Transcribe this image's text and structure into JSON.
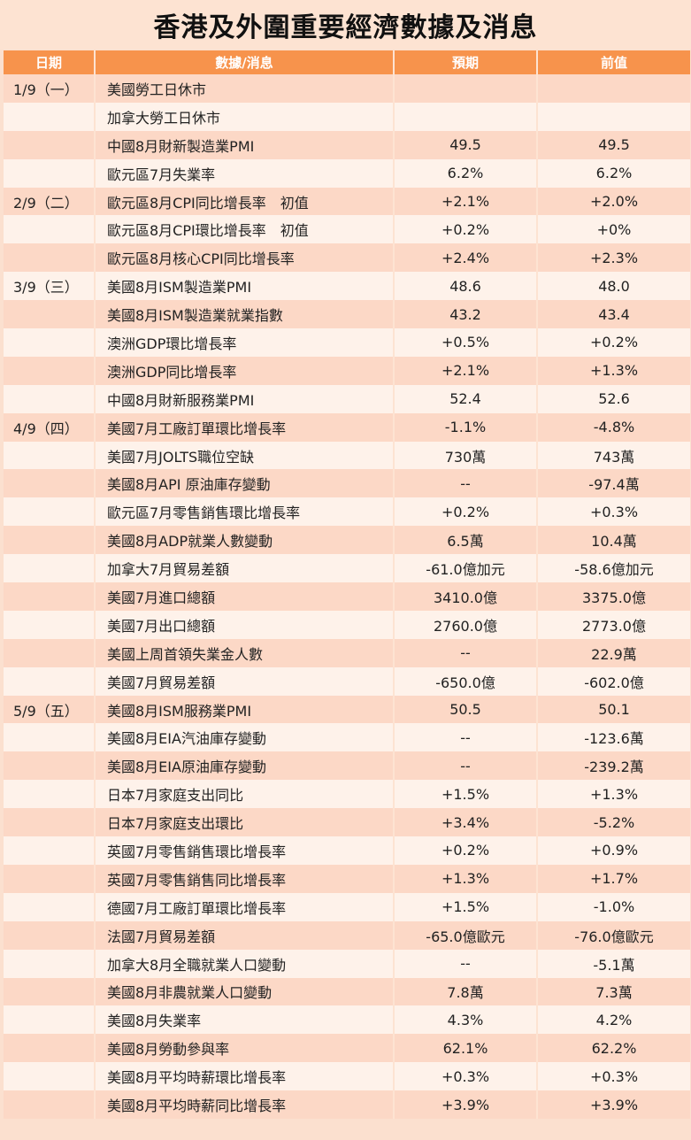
{
  "title": "香港及外圍重要經濟數據及消息",
  "colors": {
    "header_bg": "#f7934c",
    "row_dark": "#fcd8c6",
    "row_light": "#fef2ea"
  },
  "headers": {
    "date": "日期",
    "item": "數據/消息",
    "forecast": "預期",
    "previous": "前值"
  },
  "rows": [
    {
      "date": "1/9（一）",
      "item": "美國勞工日休市",
      "forecast": "",
      "previous": ""
    },
    {
      "date": "",
      "item": "加拿大勞工日休市",
      "forecast": "",
      "previous": ""
    },
    {
      "date": "",
      "item": "中國8月財新製造業PMI",
      "forecast": "49.5",
      "previous": "49.5"
    },
    {
      "date": "",
      "item": "歐元區7月失業率",
      "forecast": "6.2%",
      "previous": "6.2%"
    },
    {
      "date": "2/9（二）",
      "item": "歐元區8月CPI同比增長率　初值",
      "forecast": "+2.1%",
      "previous": "+2.0%"
    },
    {
      "date": "",
      "item": "歐元區8月CPI環比增長率　初值",
      "forecast": "+0.2%",
      "previous": "+0%"
    },
    {
      "date": "",
      "item": "歐元區8月核心CPI同比增長率",
      "forecast": "+2.4%",
      "previous": "+2.3%"
    },
    {
      "date": "3/9（三）",
      "item": "美國8月ISM製造業PMI",
      "forecast": "48.6",
      "previous": "48.0"
    },
    {
      "date": "",
      "item": "美國8月ISM製造業就業指數",
      "forecast": "43.2",
      "previous": "43.4"
    },
    {
      "date": "",
      "item": "澳洲GDP環比增長率",
      "forecast": "+0.5%",
      "previous": "+0.2%"
    },
    {
      "date": "",
      "item": "澳洲GDP同比增長率",
      "forecast": "+2.1%",
      "previous": "+1.3%"
    },
    {
      "date": "",
      "item": "中國8月財新服務業PMI",
      "forecast": "52.4",
      "previous": "52.6"
    },
    {
      "date": "4/9（四）",
      "item": "美國7月工廠訂單環比增長率",
      "forecast": "-1.1%",
      "previous": "-4.8%"
    },
    {
      "date": "",
      "item": "美國7月JOLTS職位空缺",
      "forecast": "730萬",
      "previous": "743萬"
    },
    {
      "date": "",
      "item": "美國8月API 原油庫存變動",
      "forecast": "--",
      "previous": "-97.4萬"
    },
    {
      "date": "",
      "item": "歐元區7月零售銷售環比增長率",
      "forecast": "+0.2%",
      "previous": "+0.3%"
    },
    {
      "date": "",
      "item": "美國8月ADP就業人數變動",
      "forecast": "6.5萬",
      "previous": "10.4萬"
    },
    {
      "date": "",
      "item": "加拿大7月貿易差額",
      "forecast": "-61.0億加元",
      "previous": "-58.6億加元"
    },
    {
      "date": "",
      "item": "美國7月進口總額",
      "forecast": "3410.0億",
      "previous": "3375.0億"
    },
    {
      "date": "",
      "item": "美國7月出口總額",
      "forecast": "2760.0億",
      "previous": "2773.0億"
    },
    {
      "date": "",
      "item": "美國上周首領失業金人數",
      "forecast": "--",
      "previous": "22.9萬"
    },
    {
      "date": "",
      "item": "美國7月貿易差額",
      "forecast": "-650.0億",
      "previous": "-602.0億"
    },
    {
      "date": "5/9（五）",
      "item": "美國8月ISM服務業PMI",
      "forecast": "50.5",
      "previous": "50.1"
    },
    {
      "date": "",
      "item": "美國8月EIA汽油庫存變動",
      "forecast": "--",
      "previous": "-123.6萬"
    },
    {
      "date": "",
      "item": "美國8月EIA原油庫存變動",
      "forecast": "--",
      "previous": "-239.2萬"
    },
    {
      "date": "",
      "item": "日本7月家庭支出同比",
      "forecast": "+1.5%",
      "previous": "+1.3%"
    },
    {
      "date": "",
      "item": "日本7月家庭支出環比",
      "forecast": "+3.4%",
      "previous": "-5.2%"
    },
    {
      "date": "",
      "item": "英國7月零售銷售環比增長率",
      "forecast": "+0.2%",
      "previous": "+0.9%"
    },
    {
      "date": "",
      "item": "英國7月零售銷售同比增長率",
      "forecast": "+1.3%",
      "previous": "+1.7%"
    },
    {
      "date": "",
      "item": "德國7月工廠訂單環比增長率",
      "forecast": "+1.5%",
      "previous": "-1.0%"
    },
    {
      "date": "",
      "item": "法國7月貿易差額",
      "forecast": "-65.0億歐元",
      "previous": "-76.0億歐元"
    },
    {
      "date": "",
      "item": "加拿大8月全職就業人口變動",
      "forecast": "--",
      "previous": "-5.1萬"
    },
    {
      "date": "",
      "item": "美國8月非農就業人口變動",
      "forecast": "7.8萬",
      "previous": "7.3萬"
    },
    {
      "date": "",
      "item": "美國8月失業率",
      "forecast": "4.3%",
      "previous": "4.2%"
    },
    {
      "date": "",
      "item": "美國8月勞動參與率",
      "forecast": "62.1%",
      "previous": "62.2%"
    },
    {
      "date": "",
      "item": "美國8月平均時薪環比增長率",
      "forecast": "+0.3%",
      "previous": "+0.3%"
    },
    {
      "date": "",
      "item": "美國8月平均時薪同比增長率",
      "forecast": "+3.9%",
      "previous": "+3.9%"
    }
  ]
}
